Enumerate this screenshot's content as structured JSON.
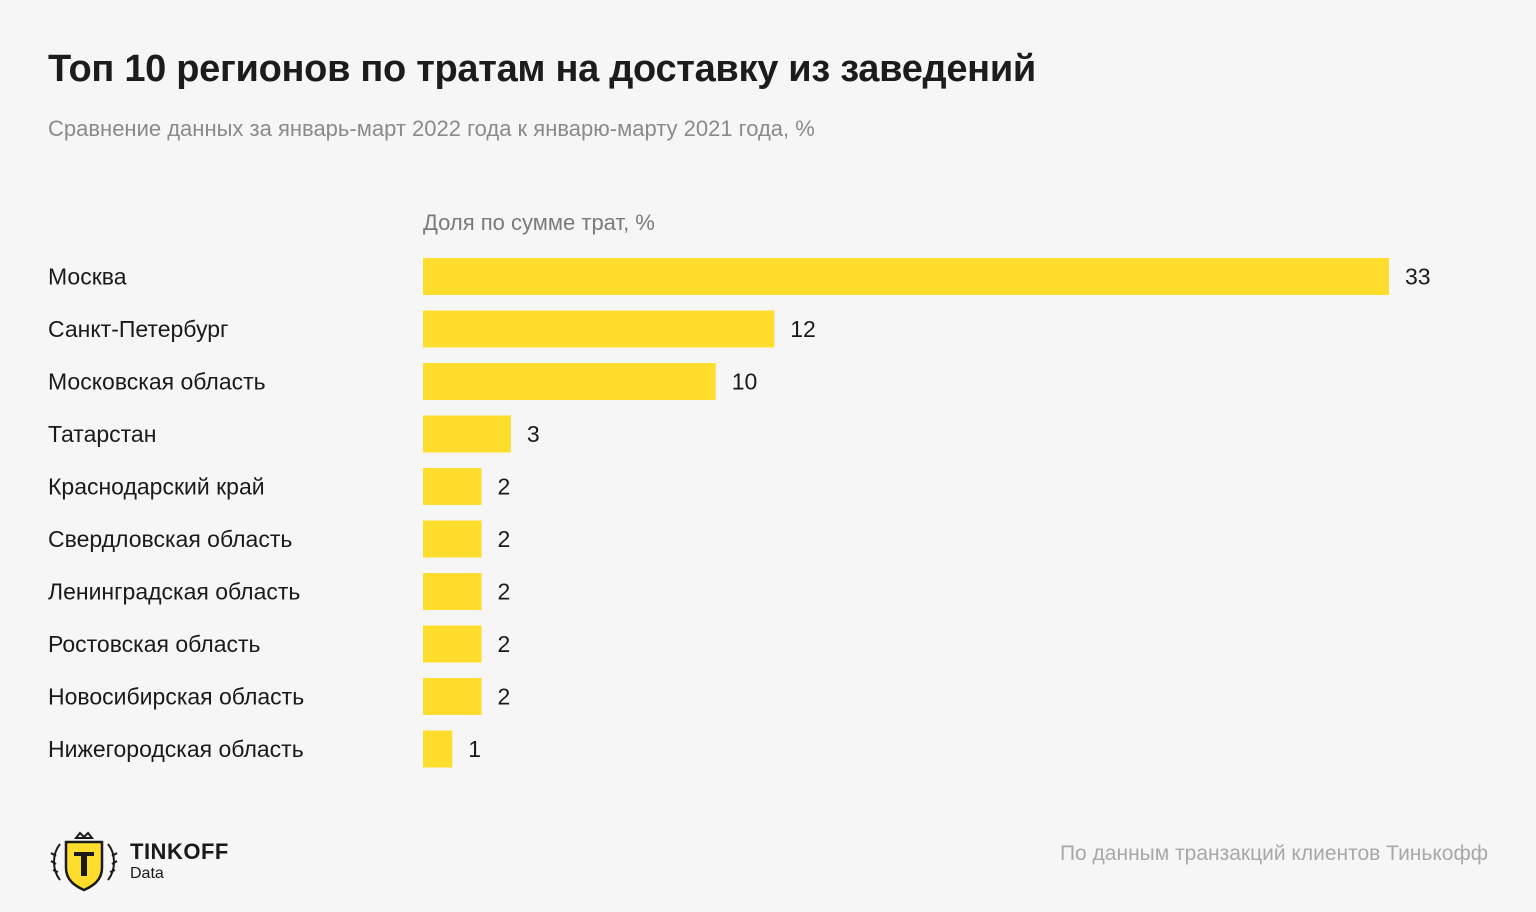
{
  "header": {
    "title": "Топ 10 регионов по тратам на доставку из заведений",
    "subtitle": "Сравнение данных за январь-март 2022 года к январю-марту 2021 года, %"
  },
  "colors": {
    "bar": "#ffdd2d",
    "background": "#f6f6f6",
    "text": "#1a1a1a",
    "muted": "#8a8a8a"
  },
  "chart_data": {
    "type": "bar",
    "orientation": "horizontal",
    "title": "",
    "column_header": "Доля по сумме трат, %",
    "categories": [
      "Москва",
      "Санкт-Петербург",
      "Московская область",
      "Татарстан",
      "Краснодарский край",
      "Свердловская область",
      "Ленинградская область",
      "Ростовская область",
      "Новосибирская область",
      "Нижегородская область"
    ],
    "values": [
      33,
      12,
      10,
      3,
      2,
      2,
      2,
      2,
      2,
      1
    ],
    "xlim": [
      0,
      33
    ],
    "grid": false,
    "data_labels": true
  },
  "footer": {
    "logo_icon": "tinkoff-shield-icon",
    "brand": "TINKOFF",
    "brand_sub": "Data",
    "source": "По данным транзакций клиентов Тинькофф"
  }
}
